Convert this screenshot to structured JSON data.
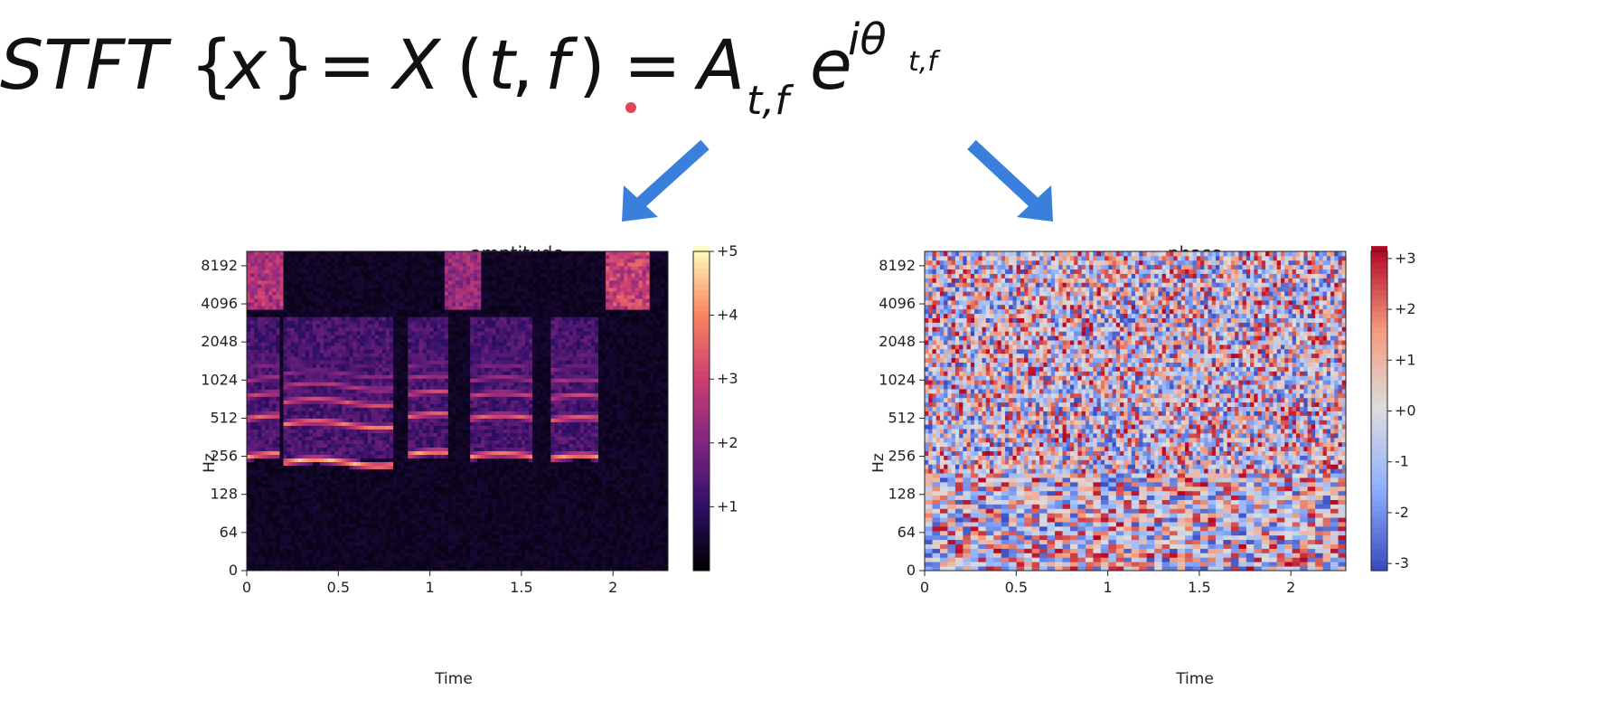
{
  "formula": {
    "lhs_op": "STFT",
    "lhs_arg": "x",
    "mid_fn": "X",
    "mid_args": [
      "t",
      "f"
    ],
    "rhs_amp": "A",
    "rhs_amp_sub": "t,f",
    "rhs_base": "e",
    "rhs_exp": "iθ",
    "rhs_exp_sub": "t,f"
  },
  "arrows": {
    "color": "#3a7fdc",
    "marker_color": "#e0475a"
  },
  "chart_data": [
    {
      "type": "heatmap",
      "id": "amplitude",
      "title": "amptitude",
      "xlabel": "Time",
      "ylabel": "Hz",
      "xlim": [
        0,
        2.3
      ],
      "x_ticks": [
        0,
        0.5,
        1,
        1.5,
        2
      ],
      "x_tick_labels": [
        "0",
        "0.5",
        "1",
        "1.5",
        "2"
      ],
      "y_scale": "log2",
      "y_ticks": [
        0,
        64,
        128,
        256,
        512,
        1024,
        2048,
        4096,
        8192
      ],
      "y_tick_labels": [
        "0",
        "64",
        "128",
        "256",
        "512",
        "1024",
        "2048",
        "4096",
        "8192"
      ],
      "colormap": "magma",
      "colorbar_ticks": [
        "+1",
        "+2",
        "+3",
        "+4",
        "+5"
      ],
      "colorbar_range": [
        0,
        5
      ],
      "harmonic_tracks": [
        {
          "t0": 0.0,
          "t1": 0.18,
          "f0": 300,
          "intensity": 4.3
        },
        {
          "t0": 0.2,
          "t1": 0.8,
          "f0": 270,
          "intensity": 4.6
        },
        {
          "t0": 0.87,
          "t1": 1.1,
          "f0": 310,
          "intensity": 4.4
        },
        {
          "t0": 1.22,
          "t1": 1.55,
          "f0": 300,
          "intensity": 4.2
        },
        {
          "t0": 1.65,
          "t1": 1.92,
          "f0": 290,
          "intensity": 4.3
        }
      ],
      "hf_bursts": [
        {
          "t0": 0.0,
          "t1": 0.2,
          "intensity": 3.2
        },
        {
          "t0": 1.07,
          "t1": 1.27,
          "intensity": 2.8
        },
        {
          "t0": 1.97,
          "t1": 2.2,
          "intensity": 3.6
        }
      ]
    },
    {
      "type": "heatmap",
      "id": "phase",
      "title": "phase",
      "xlabel": "Time",
      "ylabel": "Hz",
      "xlim": [
        0,
        2.3
      ],
      "x_ticks": [
        0,
        0.5,
        1,
        1.5,
        2
      ],
      "x_tick_labels": [
        "0",
        "0.5",
        "1",
        "1.5",
        "2"
      ],
      "y_scale": "log2",
      "y_ticks": [
        0,
        64,
        128,
        256,
        512,
        1024,
        2048,
        4096,
        8192
      ],
      "y_tick_labels": [
        "0",
        "64",
        "128",
        "256",
        "512",
        "1024",
        "2048",
        "4096",
        "8192"
      ],
      "colormap": "coolwarm",
      "colorbar_ticks": [
        "-3",
        "-2",
        "-1",
        "+0",
        "+1",
        "+2",
        "+3"
      ],
      "colorbar_range": [
        -3.14,
        3.14
      ],
      "distribution": "uniform random phase"
    }
  ]
}
